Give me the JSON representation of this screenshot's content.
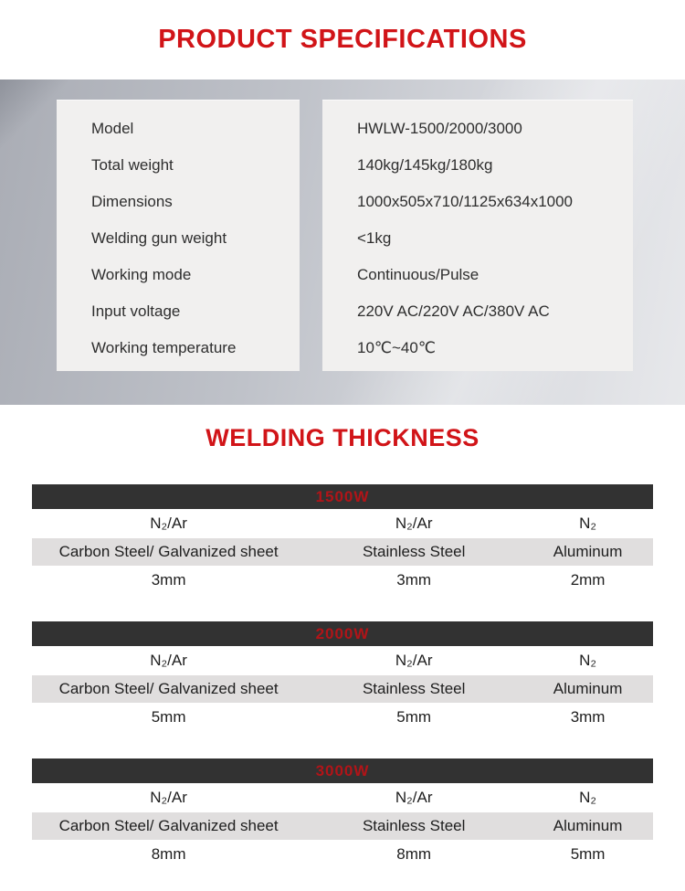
{
  "header": {
    "title": "PRODUCT SPECIFICATIONS"
  },
  "specifications": {
    "rows": [
      {
        "label": "Model",
        "value": "HWLW-1500/2000/3000"
      },
      {
        "label": "Total weight",
        "value": "140kg/145kg/180kg"
      },
      {
        "label": "Dimensions",
        "value": "1000x505x710/1125x634x1000"
      },
      {
        "label": "Welding gun weight",
        "value": "<1kg"
      },
      {
        "label": "Working mode",
        "value": "Continuous/Pulse"
      },
      {
        "label": "Input voltage",
        "value": "220V AC/220V AC/380V AC"
      },
      {
        "label": "Working temperature",
        "value": "10℃~40℃"
      }
    ]
  },
  "welding_thickness": {
    "title": "WELDING THICKNESS",
    "tables": [
      {
        "power": "1500W",
        "columns": [
          {
            "gas": "N₂/Ar",
            "material": "Carbon Steel/ Galvanized sheet",
            "thickness": "3mm"
          },
          {
            "gas": "N₂/Ar",
            "material": "Stainless Steel",
            "thickness": "3mm"
          },
          {
            "gas": "N₂",
            "material": "Aluminum",
            "thickness": "2mm"
          }
        ]
      },
      {
        "power": "2000W",
        "columns": [
          {
            "gas": "N₂/Ar",
            "material": "Carbon Steel/ Galvanized sheet",
            "thickness": "5mm"
          },
          {
            "gas": "N₂/Ar",
            "material": "Stainless Steel",
            "thickness": "5mm"
          },
          {
            "gas": "N₂",
            "material": "Aluminum",
            "thickness": "3mm"
          }
        ]
      },
      {
        "power": "3000W",
        "columns": [
          {
            "gas": "N₂/Ar",
            "material": "Carbon Steel/ Galvanized sheet",
            "thickness": "8mm"
          },
          {
            "gas": "N₂/Ar",
            "material": "Stainless Steel",
            "thickness": "8mm"
          },
          {
            "gas": "N₂",
            "material": "Aluminum",
            "thickness": "5mm"
          }
        ]
      }
    ]
  },
  "colors": {
    "title_red": "#d11418",
    "bar_red": "#b11418",
    "bar_dark": "#323232",
    "row_gray": "#e0dede",
    "panel_bg": "#f1f0ef"
  }
}
